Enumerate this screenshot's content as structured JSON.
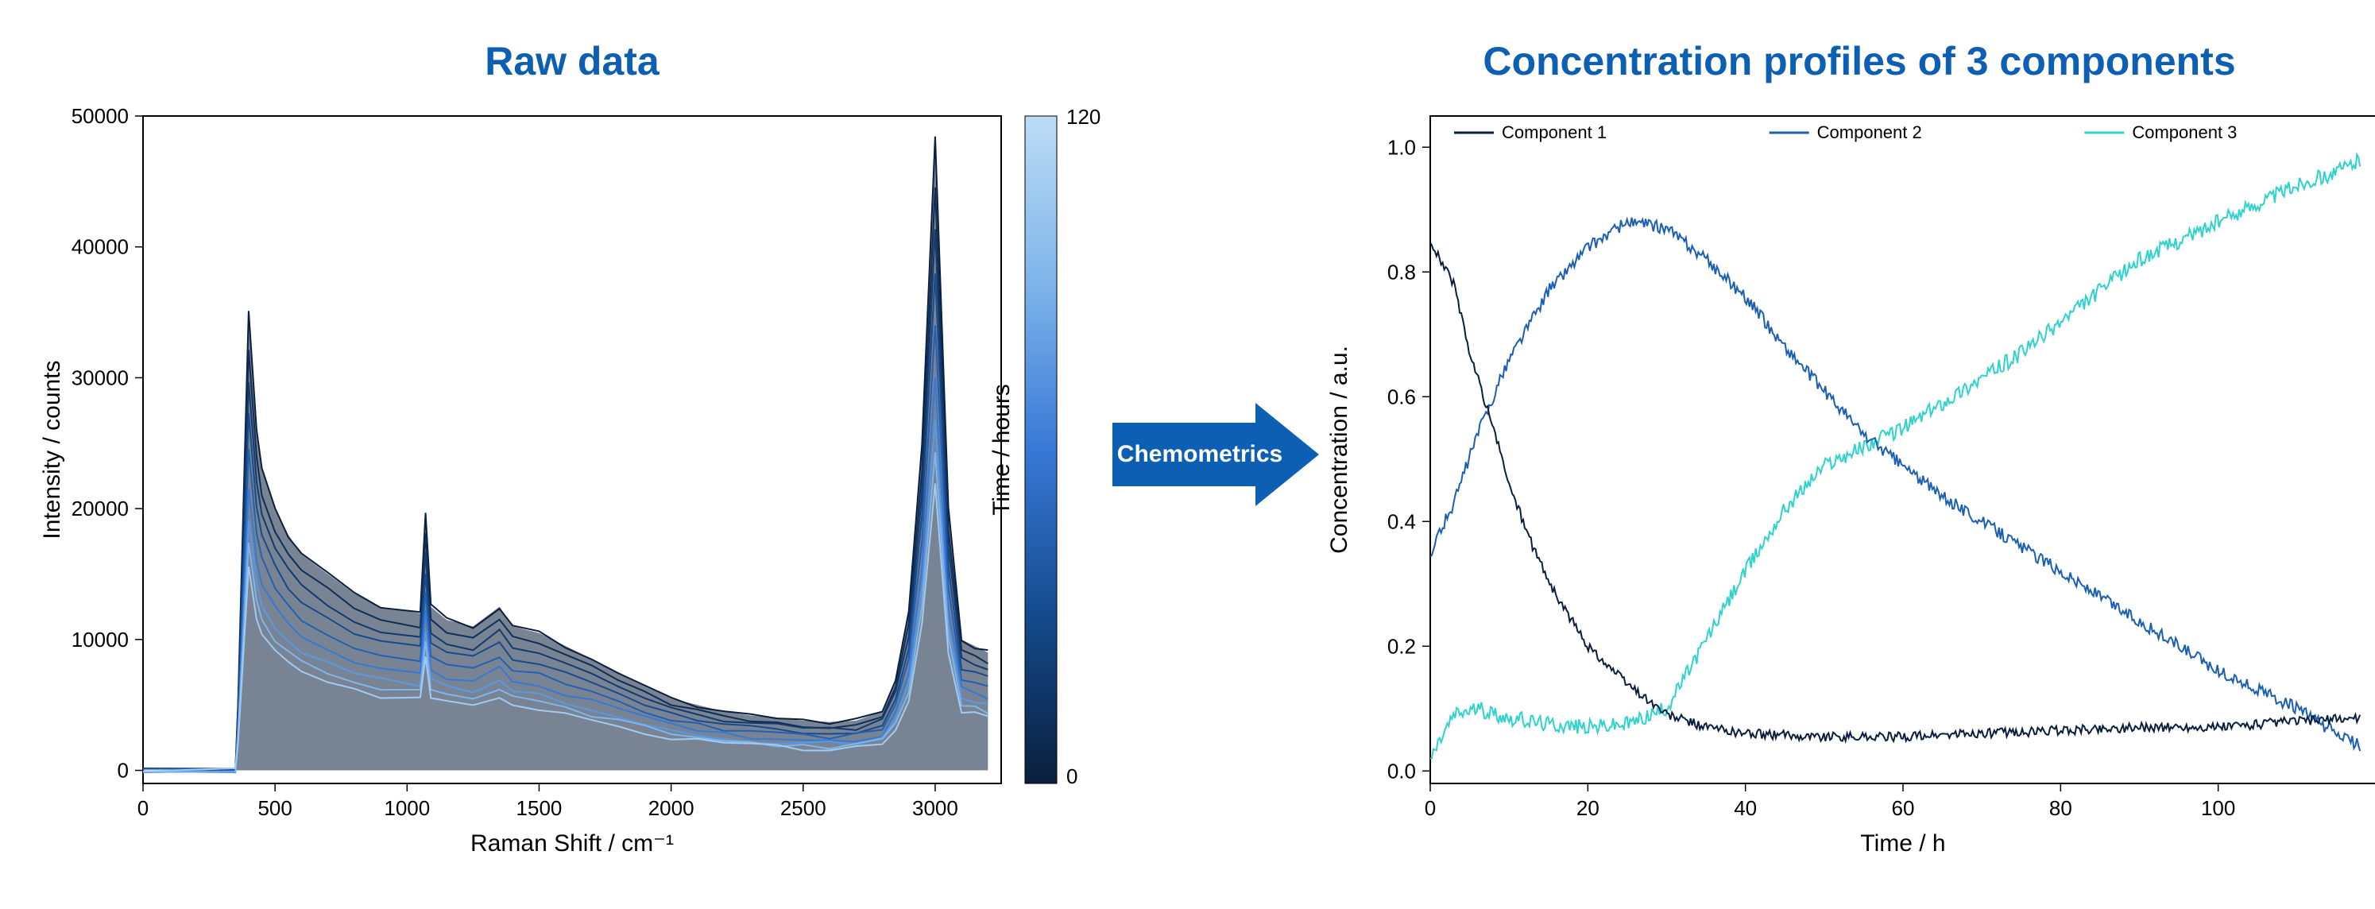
{
  "left": {
    "title": "Raw data",
    "xlabel": "Raman Shift / cm⁻¹",
    "ylabel": "Intensity / counts",
    "xlim": [
      0,
      3250
    ],
    "ylim": [
      -1000,
      50000
    ],
    "xticks": [
      0,
      500,
      1000,
      1500,
      2000,
      2500,
      3000
    ],
    "yticks": [
      0,
      10000,
      20000,
      30000,
      40000,
      50000
    ],
    "background_color": "#ffffff",
    "border_color": "#000000",
    "spectra_color_dark": "#0a1f3d",
    "spectra_color_light": "#a2caf0",
    "colorbar": {
      "label": "Time / hours",
      "min": 0,
      "max": 120,
      "gradient": [
        "#0a1f3d",
        "#144a8c",
        "#3878d6",
        "#7fb5ea",
        "#bcdcf6"
      ]
    },
    "series": [
      {
        "color": "#0a1f3d",
        "scale": 1.0
      },
      {
        "color": "#0f2d55",
        "scale": 0.92
      },
      {
        "color": "#13396d",
        "scale": 0.85
      },
      {
        "color": "#184a8c",
        "scale": 0.78
      },
      {
        "color": "#2460b0",
        "scale": 0.7
      },
      {
        "color": "#3878d6",
        "scale": 0.62
      },
      {
        "color": "#5b98e2",
        "scale": 0.55
      },
      {
        "color": "#7fb5ea",
        "scale": 0.5
      },
      {
        "color": "#a2caf0",
        "scale": 0.45
      }
    ],
    "base_spectrum": {
      "x": [
        0,
        350,
        360,
        400,
        430,
        450,
        500,
        550,
        600,
        700,
        800,
        900,
        1050,
        1070,
        1090,
        1150,
        1250,
        1350,
        1400,
        1500,
        1600,
        1700,
        1800,
        1900,
        2000,
        2100,
        2200,
        2300,
        2400,
        2500,
        2600,
        2700,
        2800,
        2850,
        2900,
        2950,
        3000,
        3050,
        3100,
        3150,
        3200
      ],
      "y": [
        0,
        0,
        5000,
        35000,
        26000,
        23000,
        20000,
        18000,
        16500,
        15000,
        13500,
        12500,
        12000,
        19500,
        12500,
        11500,
        11000,
        12500,
        11000,
        10500,
        9500,
        8500,
        7500,
        6500,
        5500,
        5000,
        4500,
        4200,
        4000,
        3800,
        3700,
        3800,
        4500,
        7000,
        12000,
        25000,
        48500,
        20000,
        10000,
        9500,
        9000
      ]
    }
  },
  "right": {
    "title": "Concentration profiles of 3 components",
    "xlabel": "Time / h",
    "ylabel": "Concentration / a.u.",
    "xlim": [
      0,
      120
    ],
    "ylim": [
      -0.02,
      1.05
    ],
    "xticks": [
      0,
      20,
      40,
      60,
      80,
      100
    ],
    "yticks": [
      0.0,
      0.2,
      0.4,
      0.6,
      0.8,
      1.0
    ],
    "background_color": "#ffffff",
    "border_color": "#000000",
    "legend": [
      {
        "label": "Component 1",
        "color": "#0a1f3d"
      },
      {
        "label": "Component 2",
        "color": "#1b5fb3"
      },
      {
        "label": "Component 3",
        "color": "#2ed3cc"
      }
    ],
    "components": {
      "c1": {
        "color": "#0a1f3d",
        "line_width": 2,
        "x": [
          0,
          3,
          5,
          8,
          10,
          13,
          16,
          20,
          25,
          30,
          35,
          40,
          50,
          60,
          70,
          80,
          90,
          100,
          110,
          118
        ],
        "y": [
          0.85,
          0.78,
          0.67,
          0.55,
          0.46,
          0.36,
          0.28,
          0.2,
          0.14,
          0.09,
          0.07,
          0.06,
          0.055,
          0.055,
          0.06,
          0.065,
          0.07,
          0.07,
          0.08,
          0.085
        ]
      },
      "c2": {
        "color": "#1b5fb3",
        "line_width": 2,
        "x": [
          0,
          3,
          6,
          10,
          15,
          20,
          25,
          30,
          35,
          40,
          45,
          50,
          55,
          60,
          65,
          70,
          75,
          80,
          85,
          90,
          95,
          100,
          105,
          110,
          115,
          118
        ],
        "y": [
          0.35,
          0.43,
          0.54,
          0.66,
          0.77,
          0.84,
          0.88,
          0.87,
          0.82,
          0.76,
          0.68,
          0.61,
          0.54,
          0.49,
          0.44,
          0.4,
          0.36,
          0.32,
          0.28,
          0.24,
          0.2,
          0.16,
          0.13,
          0.1,
          0.06,
          0.04
        ]
      },
      "c3": {
        "color": "#2ed3cc",
        "line_width": 2,
        "x": [
          0,
          3,
          6,
          10,
          15,
          20,
          25,
          30,
          35,
          40,
          45,
          50,
          55,
          60,
          65,
          70,
          75,
          80,
          85,
          90,
          95,
          100,
          105,
          110,
          115,
          118
        ],
        "y": [
          0.02,
          0.09,
          0.1,
          0.085,
          0.075,
          0.07,
          0.075,
          0.1,
          0.21,
          0.32,
          0.42,
          0.49,
          0.52,
          0.55,
          0.59,
          0.63,
          0.67,
          0.72,
          0.77,
          0.82,
          0.85,
          0.88,
          0.91,
          0.94,
          0.96,
          0.98
        ]
      }
    }
  },
  "arrow": {
    "label": "Chemometrics",
    "fill_color": "#0d5fb3",
    "text_color": "#ffffff"
  }
}
